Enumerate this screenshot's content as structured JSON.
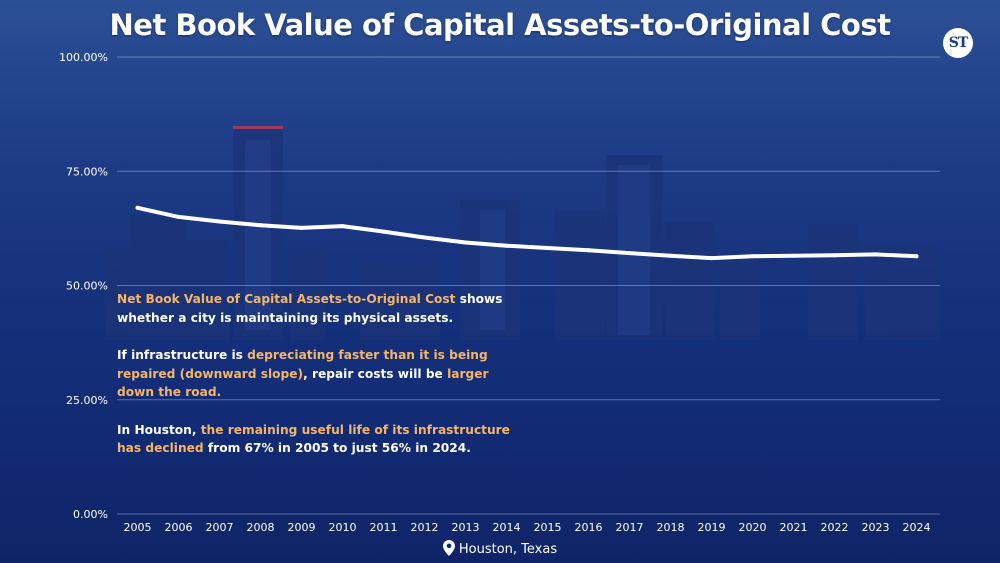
{
  "page": {
    "title": "Net Book Value of Capital Assets-to-Original Cost",
    "logo_text": "ST",
    "location": "Houston, Texas"
  },
  "annotation": {
    "p1": [
      {
        "text": "Net Book Value of Capital Assets-to-Original Cost",
        "hl": true
      },
      {
        "text": " shows whether a city is maintaining its physical assets.",
        "hl": false
      }
    ],
    "p2": [
      {
        "text": "If infrastructure is ",
        "hl": false
      },
      {
        "text": "depreciating faster than it is being repaired (downward slope)",
        "hl": true
      },
      {
        "text": ", repair costs will be ",
        "hl": false
      },
      {
        "text": "larger down the road.",
        "hl": true
      }
    ],
    "p3": [
      {
        "text": "In Houston, ",
        "hl": false
      },
      {
        "text": "the remaining useful life of its infrastructure has declined",
        "hl": true
      },
      {
        "text": " from 67% in 2005 to just 56% in 2024.",
        "hl": false
      }
    ]
  },
  "colors": {
    "highlight": "#f5b567",
    "text": "#ffffff",
    "line": "#ffffff",
    "background": "#1d3a86"
  },
  "chart_data": {
    "type": "line",
    "title": "Net Book Value of Capital Assets-to-Original Cost",
    "xlabel": "",
    "ylabel": "",
    "categories": [
      "2005",
      "2006",
      "2007",
      "2008",
      "2009",
      "2010",
      "2011",
      "2012",
      "2013",
      "2014",
      "2015",
      "2016",
      "2017",
      "2018",
      "2019",
      "2020",
      "2021",
      "2022",
      "2023",
      "2024"
    ],
    "series": [
      {
        "values": [
          67.0,
          65.0,
          64.0,
          63.2,
          62.6,
          63.0,
          61.8,
          60.5,
          59.4,
          58.7,
          58.2,
          57.7,
          57.1,
          56.5,
          56.0,
          56.4,
          56.5,
          56.6,
          56.8,
          56.4
        ]
      }
    ],
    "ylim": [
      0,
      100
    ],
    "yticks": [
      "0.00%",
      "25.00%",
      "50.00%",
      "75.00%",
      "100.00%"
    ],
    "ytick_values": [
      0,
      25,
      50,
      75,
      100
    ],
    "grid": true,
    "legend": "none"
  }
}
